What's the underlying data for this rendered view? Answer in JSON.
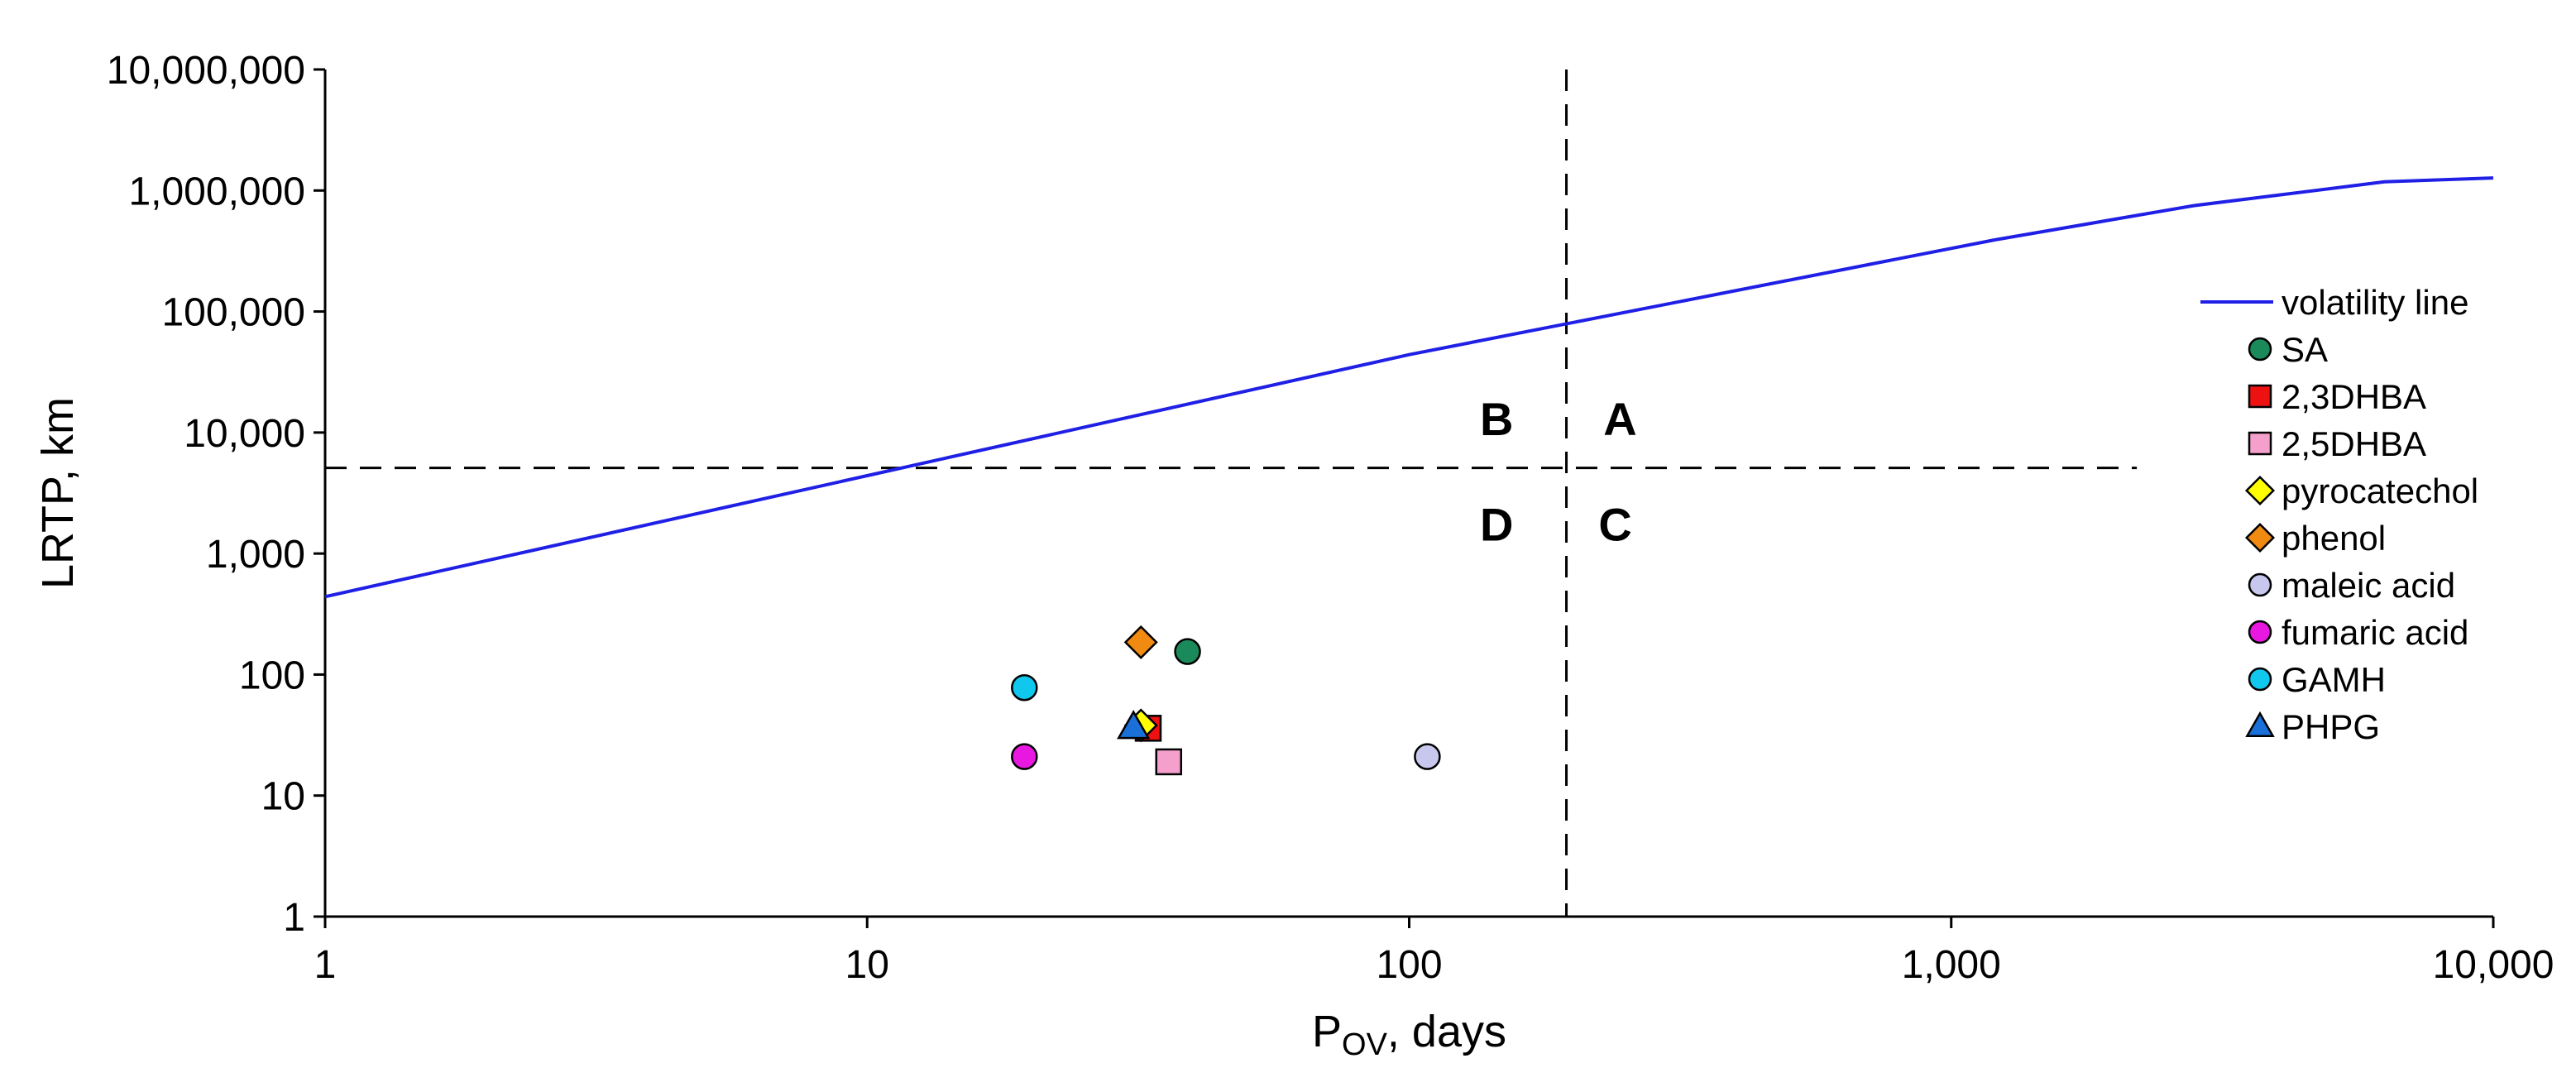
{
  "chart_data": {
    "type": "scatter",
    "title": "",
    "xlabel": "P",
    "xlabel_sub": "OV",
    "xlabel_suffix": ", days",
    "ylabel": "LRTP, km",
    "x_scale": "log",
    "y_scale": "log",
    "xlim": [
      1,
      10000
    ],
    "ylim": [
      1,
      10000000
    ],
    "x_ticks": [
      {
        "value": 1,
        "label": "1"
      },
      {
        "value": 10,
        "label": "10"
      },
      {
        "value": 100,
        "label": "100"
      },
      {
        "value": 1000,
        "label": "1,000"
      },
      {
        "value": 10000,
        "label": "10,000"
      }
    ],
    "y_ticks": [
      {
        "value": 1,
        "label": "1"
      },
      {
        "value": 10,
        "label": "10"
      },
      {
        "value": 100,
        "label": "100"
      },
      {
        "value": 1000,
        "label": "1,000"
      },
      {
        "value": 10000,
        "label": "10,000"
      },
      {
        "value": 100000,
        "label": "100,000"
      },
      {
        "value": 1000000,
        "label": "1,000,000"
      },
      {
        "value": 10000000,
        "label": "10,000,000"
      }
    ],
    "grid": false,
    "legend_position": "right",
    "threshold_lines": [
      {
        "orientation": "vertical",
        "x": 195,
        "style": "dashed"
      },
      {
        "orientation": "horizontal",
        "y": 5100,
        "x_end": 2200,
        "style": "dashed"
      }
    ],
    "quadrant_labels": [
      {
        "label": "B",
        "x": 145,
        "y": 13000
      },
      {
        "label": "A",
        "x": 245,
        "y": 13000
      },
      {
        "label": "D",
        "x": 145,
        "y": 1750
      },
      {
        "label": "C",
        "x": 240,
        "y": 1750
      }
    ],
    "series": [
      {
        "name": "volatility line",
        "kind": "line",
        "color": "#1f1fe6",
        "x": [
          1,
          10,
          100,
          1200,
          2800,
          6300,
          10000
        ],
        "y": [
          440,
          4400,
          44000,
          390000,
          750000,
          1180000,
          1270000
        ]
      },
      {
        "name": "SA",
        "kind": "marker",
        "marker": "circle",
        "color": "#1a8a5a",
        "x": [
          39
        ],
        "y": [
          155
        ]
      },
      {
        "name": "2,3DHBA",
        "kind": "marker",
        "marker": "square",
        "color": "#ee1111",
        "x": [
          33
        ],
        "y": [
          36
        ]
      },
      {
        "name": "2,5DHBA",
        "kind": "marker",
        "marker": "square",
        "color": "#f5a0cc",
        "x": [
          36
        ],
        "y": [
          19
        ]
      },
      {
        "name": "pyrocatechol",
        "kind": "marker",
        "marker": "diamond",
        "color": "#ffff00",
        "x": [
          32
        ],
        "y": [
          38
        ]
      },
      {
        "name": "phenol",
        "kind": "marker",
        "marker": "diamond",
        "color": "#f08a10",
        "x": [
          32
        ],
        "y": [
          185
        ]
      },
      {
        "name": "maleic acid",
        "kind": "marker",
        "marker": "circle",
        "color": "#c8c8ee",
        "x": [
          108
        ],
        "y": [
          21
        ]
      },
      {
        "name": "fumaric acid",
        "kind": "marker",
        "marker": "circle",
        "color": "#e818e0",
        "x": [
          19.5
        ],
        "y": [
          21
        ]
      },
      {
        "name": "GAMH",
        "kind": "marker",
        "marker": "circle",
        "color": "#10c8ee",
        "x": [
          19.5
        ],
        "y": [
          78
        ]
      },
      {
        "name": "PHPG",
        "kind": "marker",
        "marker": "triangle",
        "color": "#1a70d8",
        "x": [
          31
        ],
        "y": [
          37
        ]
      }
    ]
  }
}
